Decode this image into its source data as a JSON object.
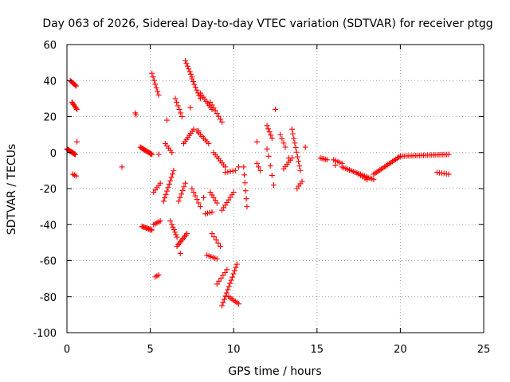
{
  "chart_data": {
    "type": "scatter",
    "title": "Day 063 of 2026, Sidereal Day-to-day VTEC variation (SDTVAR) for receiver ptgg",
    "xlabel": "GPS time / hours",
    "ylabel": "SDTVAR / TECUs",
    "xlim": [
      0,
      25
    ],
    "ylim": [
      -100,
      60
    ],
    "xticks": [
      0,
      5,
      10,
      15,
      20,
      25
    ],
    "xtick_labels": [
      "0",
      "5",
      "10",
      "15",
      "20",
      "25"
    ],
    "yticks": [
      -100,
      -80,
      -60,
      -40,
      -20,
      0,
      20,
      40,
      60
    ],
    "ytick_labels": [
      "-100",
      "-80",
      "-60",
      "-40",
      "-20",
      "0",
      "20",
      "40",
      "60"
    ],
    "grid": true,
    "marker": "+",
    "marker_color": "#ff0000",
    "series": [
      {
        "name": "SDTVAR",
        "segments": [
          {
            "x": [
              0.0,
              0.5
            ],
            "y": [
              2,
              -1
            ],
            "n": 14
          },
          {
            "x": [
              0.2,
              0.55
            ],
            "y": [
              40,
              37
            ],
            "n": 7
          },
          {
            "x": [
              0.3,
              0.6
            ],
            "y": [
              28,
              24
            ],
            "n": 7
          },
          {
            "x": [
              0.35,
              0.55
            ],
            "y": [
              -12,
              -13
            ],
            "n": 3
          },
          {
            "x": [
              4.1,
              4.15
            ],
            "y": [
              22,
              21
            ],
            "n": 2
          },
          {
            "x": [
              4.4,
              5.1
            ],
            "y": [
              3,
              -1
            ],
            "n": 14
          },
          {
            "x": [
              4.5,
              5.1
            ],
            "y": [
              -41,
              -43
            ],
            "n": 10
          },
          {
            "x": [
              5.1,
              5.5
            ],
            "y": [
              44,
              32
            ],
            "n": 7
          },
          {
            "x": [
              5.2,
              5.6
            ],
            "y": [
              -22,
              -17
            ],
            "n": 5
          },
          {
            "x": [
              5.2,
              5.6
            ],
            "y": [
              -40,
              -38
            ],
            "n": 5
          },
          {
            "x": [
              5.3,
              5.5
            ],
            "y": [
              -69,
              -68
            ],
            "n": 3
          },
          {
            "x": [
              5.9,
              6.3
            ],
            "y": [
              5,
              0
            ],
            "n": 5
          },
          {
            "x": [
              5.8,
              6.4
            ],
            "y": [
              -27,
              -10
            ],
            "n": 10
          },
          {
            "x": [
              6.3,
              6.6
            ],
            "y": [
              -40,
              -47
            ],
            "n": 6
          },
          {
            "x": [
              6.5,
              6.9
            ],
            "y": [
              30,
              20
            ],
            "n": 6
          },
          {
            "x": [
              6.6,
              7.2
            ],
            "y": [
              -52,
              -45
            ],
            "n": 9
          },
          {
            "x": [
              6.7,
              7.1
            ],
            "y": [
              -27,
              -17
            ],
            "n": 6
          },
          {
            "x": [
              7.1,
              7.5
            ],
            "y": [
              51,
              42
            ],
            "n": 7
          },
          {
            "x": [
              7.0,
              7.6
            ],
            "y": [
              5,
              13
            ],
            "n": 8
          },
          {
            "x": [
              7.5,
              8.0
            ],
            "y": [
              41,
              30
            ],
            "n": 8
          },
          {
            "x": [
              7.5,
              8.0
            ],
            "y": [
              -20,
              -30
            ],
            "n": 6
          },
          {
            "x": [
              7.8,
              8.5
            ],
            "y": [
              12,
              5
            ],
            "n": 8
          },
          {
            "x": [
              8.0,
              8.7
            ],
            "y": [
              33,
              24
            ],
            "n": 9
          },
          {
            "x": [
              8.3,
              8.7
            ],
            "y": [
              -34,
              -33
            ],
            "n": 4
          },
          {
            "x": [
              8.4,
              9.0
            ],
            "y": [
              -57,
              -59
            ],
            "n": 6
          },
          {
            "x": [
              8.6,
              9.0
            ],
            "y": [
              -22,
              -28
            ],
            "n": 5
          },
          {
            "x": [
              8.6,
              9.3
            ],
            "y": [
              28,
              17
            ],
            "n": 8
          },
          {
            "x": [
              8.7,
              9.2
            ],
            "y": [
              -45,
              -52
            ],
            "n": 5
          },
          {
            "x": [
              8.8,
              9.5
            ],
            "y": [
              0,
              -8
            ],
            "n": 8
          },
          {
            "x": [
              9.0,
              9.6
            ],
            "y": [
              -73,
              -65
            ],
            "n": 6
          },
          {
            "x": [
              9.3,
              10.2
            ],
            "y": [
              -85,
              -62
            ],
            "n": 14
          },
          {
            "x": [
              9.3,
              10.0
            ],
            "y": [
              -32,
              -22
            ],
            "n": 8
          },
          {
            "x": [
              9.5,
              10.1
            ],
            "y": [
              -11,
              -10
            ],
            "n": 5
          },
          {
            "x": [
              9.7,
              10.3
            ],
            "y": [
              -80,
              -84
            ],
            "n": 7
          },
          {
            "x": [
              10.6,
              10.8
            ],
            "y": [
              -8,
              -30
            ],
            "n": 6
          },
          {
            "x": [
              11.4,
              11.6
            ],
            "y": [
              -6,
              -10
            ],
            "n": 3
          },
          {
            "x": [
              12.0,
              12.3
            ],
            "y": [
              15,
              8
            ],
            "n": 5
          },
          {
            "x": [
              12.1,
              12.4
            ],
            "y": [
              -2,
              -18
            ],
            "n": 4
          },
          {
            "x": [
              12.5,
              12.5
            ],
            "y": [
              24,
              24
            ],
            "n": 1
          },
          {
            "x": [
              12.8,
              13.1
            ],
            "y": [
              10,
              3
            ],
            "n": 4
          },
          {
            "x": [
              13.0,
              13.5
            ],
            "y": [
              -9,
              -3
            ],
            "n": 6
          },
          {
            "x": [
              13.5,
              14.0
            ],
            "y": [
              13,
              -10
            ],
            "n": 10
          },
          {
            "x": [
              13.8,
              14.1
            ],
            "y": [
              -20,
              -16
            ],
            "n": 4
          },
          {
            "x": [
              15.2,
              15.6
            ],
            "y": [
              -3,
              -4
            ],
            "n": 5
          },
          {
            "x": [
              16.0,
              16.5
            ],
            "y": [
              -4,
              -6
            ],
            "n": 5
          },
          {
            "x": [
              16.5,
              18.4
            ],
            "y": [
              -8,
              -15
            ],
            "n": 18
          },
          {
            "x": [
              17.5,
              18.0
            ],
            "y": [
              -12,
              -15
            ],
            "n": 5
          },
          {
            "x": [
              18.4,
              20.0
            ],
            "y": [
              -12,
              -2
            ],
            "n": 18
          },
          {
            "x": [
              20.0,
              22.9
            ],
            "y": [
              -2,
              -1
            ],
            "n": 26
          },
          {
            "x": [
              22.2,
              22.9
            ],
            "y": [
              -11,
              -12
            ],
            "n": 6
          }
        ],
        "points": [
          [
            0.6,
            6
          ],
          [
            3.3,
            -8
          ],
          [
            5.5,
            -1
          ],
          [
            6.0,
            18
          ],
          [
            6.2,
            -38
          ],
          [
            6.8,
            -56
          ],
          [
            7.4,
            25
          ],
          [
            7.9,
            12
          ],
          [
            8.2,
            -25
          ],
          [
            10.3,
            -8
          ],
          [
            11.4,
            6
          ],
          [
            12.0,
            2
          ],
          [
            13.3,
            -3
          ],
          [
            14.3,
            3
          ],
          [
            16.1,
            -7
          ]
        ]
      }
    ]
  }
}
